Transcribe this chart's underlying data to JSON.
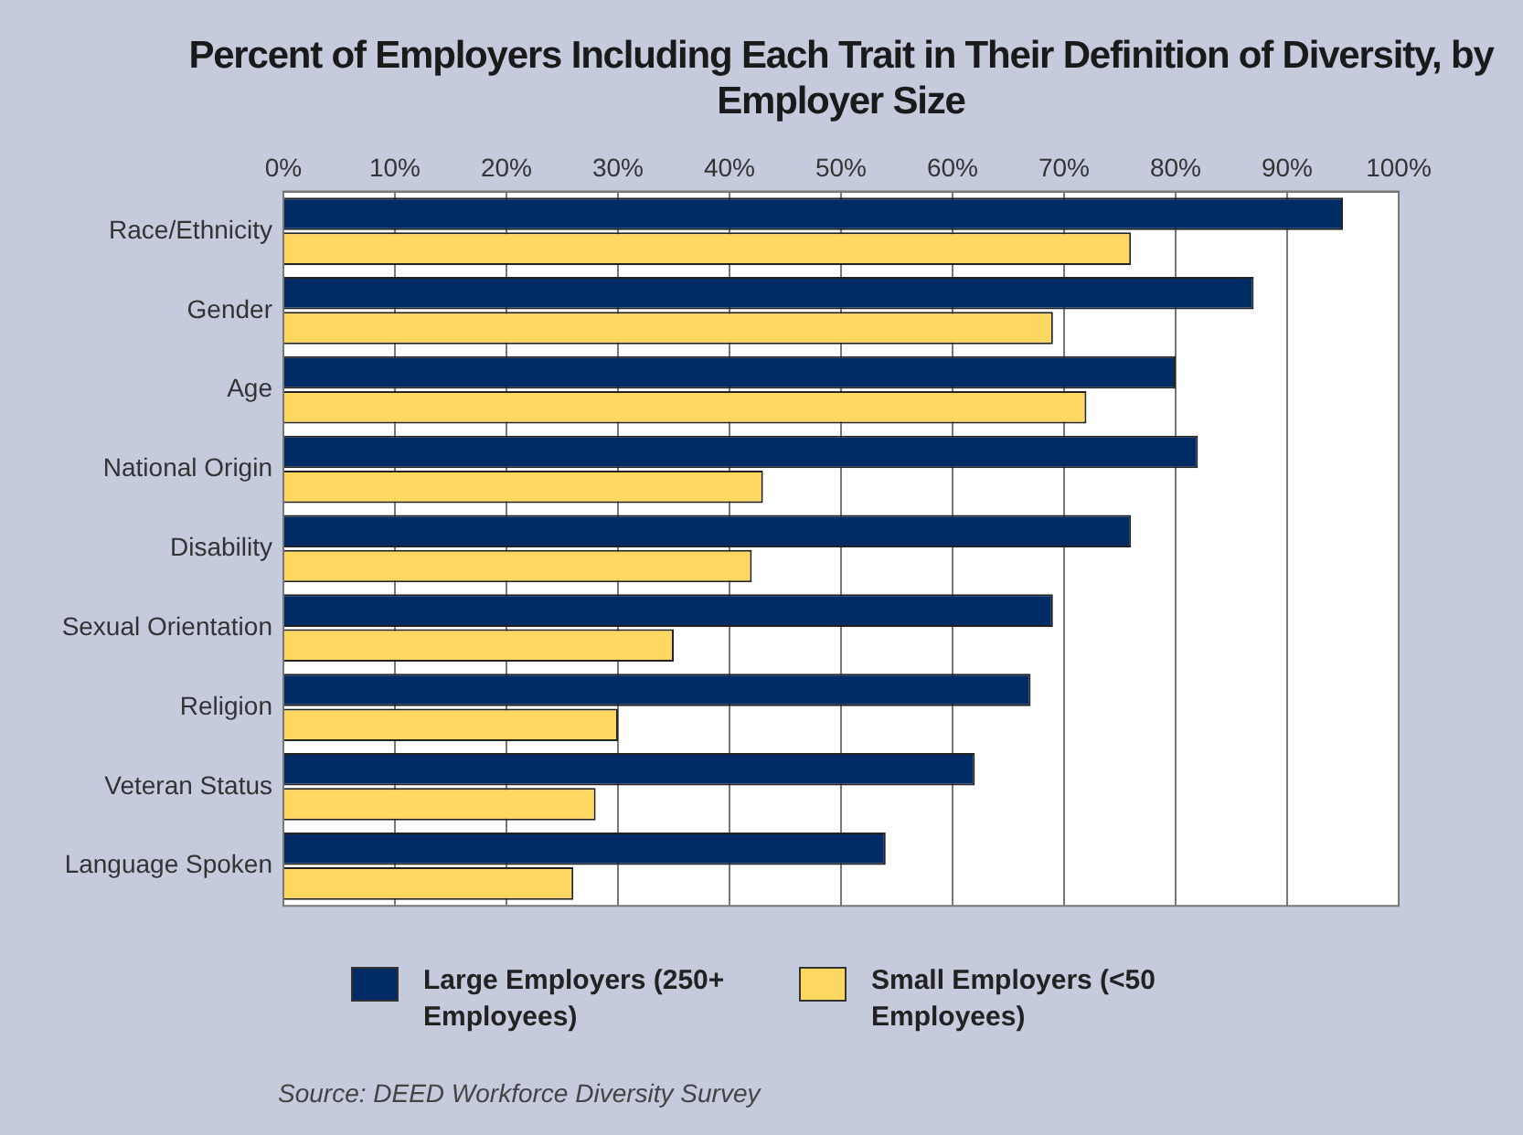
{
  "chart_data": {
    "type": "bar",
    "orientation": "horizontal",
    "title": "Percent of Employers Including Each Trait in Their Definition of Diversity, by Employer Size",
    "categories": [
      "Race/Ethnicity",
      "Gender",
      "Age",
      "National Origin",
      "Disability",
      "Sexual Orientation",
      "Religion",
      "Veteran Status",
      "Language Spoken"
    ],
    "series": [
      {
        "name": "Large Employers (250+ Employees)",
        "color": "#002b64",
        "values": [
          95,
          87,
          80,
          82,
          76,
          69,
          67,
          62,
          54
        ]
      },
      {
        "name": "Small Employers (<50 Employees)",
        "color": "#fed761",
        "values": [
          76,
          69,
          72,
          43,
          42,
          35,
          30,
          28,
          26
        ]
      }
    ],
    "xlim": [
      0,
      100
    ],
    "xticks": [
      {
        "value": 0,
        "label": "0%"
      },
      {
        "value": 10,
        "label": "10%"
      },
      {
        "value": 20,
        "label": "20%"
      },
      {
        "value": 30,
        "label": "30%"
      },
      {
        "value": 40,
        "label": "40%"
      },
      {
        "value": 50,
        "label": "50%"
      },
      {
        "value": 60,
        "label": "60%"
      },
      {
        "value": 70,
        "label": "70%"
      },
      {
        "value": 80,
        "label": "80%"
      },
      {
        "value": 90,
        "label": "90%"
      },
      {
        "value": 100,
        "label": "100%"
      }
    ],
    "grid": "x",
    "legend": "bottom",
    "annotations": [
      "Source: DEED Workforce Diversity Survey"
    ]
  }
}
